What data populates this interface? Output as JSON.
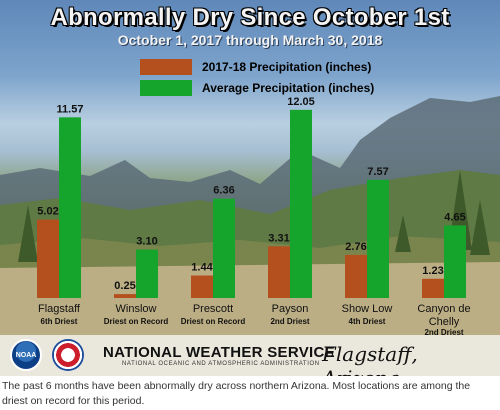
{
  "chart_data": {
    "type": "bar",
    "title": "Abnormally Dry Since October 1st",
    "subtitle": "October 1, 2017 through March 30, 2018",
    "xlabel": "",
    "ylabel": "",
    "ylim": [
      0,
      13
    ],
    "grid": false,
    "legend_position": "top-center",
    "categories": [
      "Flagstaff",
      "Winslow",
      "Prescott",
      "Payson",
      "Show Low",
      "Canyon de Chelly"
    ],
    "category_notes": [
      "6th Driest",
      "Driest on Record",
      "Driest on Record",
      "2nd Driest",
      "4th Driest",
      "2nd Driest"
    ],
    "series": [
      {
        "name": "2017-18 Precipitation (inches)",
        "color": "#b3501e",
        "values": [
          5.02,
          0.25,
          1.44,
          3.31,
          2.76,
          1.23
        ],
        "labels": [
          "5.02",
          "0.25",
          "1.44",
          "3.31",
          "2.76",
          "1.23"
        ]
      },
      {
        "name": "Average Precipitation (inches)",
        "color": "#15a52c",
        "values": [
          11.57,
          3.1,
          6.36,
          12.05,
          7.57,
          4.65
        ],
        "labels": [
          "11.57",
          "3.10",
          "6.36",
          "12.05",
          "7.57",
          "4.65"
        ]
      }
    ]
  },
  "branding": {
    "noaa_logo_text": "NOAA",
    "org_name": "NATIONAL WEATHER SERVICE",
    "org_subtitle": "NATIONAL OCEANIC AND ATMOSPHERIC ADMINISTRATION",
    "location": "Flagstaff, Arizona"
  },
  "caption": "The past 6 months have been abnormally dry across northern Arizona. Most locations are among the driest on record for this period."
}
